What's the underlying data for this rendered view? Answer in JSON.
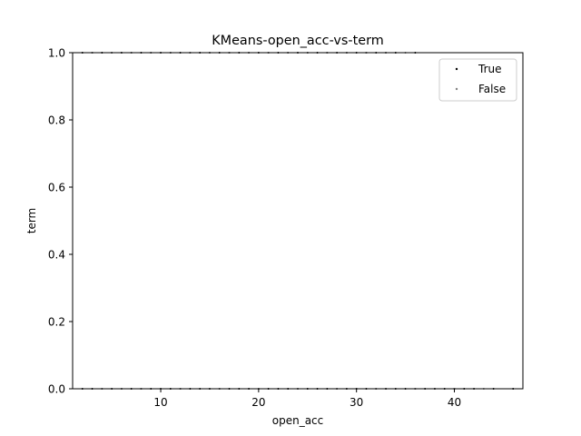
{
  "chart_data": {
    "type": "scatter",
    "title": "KMeans-open_acc-vs-term",
    "xlabel": "open_acc",
    "ylabel": "term",
    "xlim": [
      1,
      47
    ],
    "ylim": [
      0,
      1
    ],
    "x_ticks": [
      10,
      20,
      30,
      40
    ],
    "y_ticks": [
      0.0,
      0.2,
      0.4,
      0.6,
      0.8,
      1.0
    ],
    "y_tick_labels": [
      "0.0",
      "0.2",
      "0.4",
      "0.6",
      "0.8",
      "1.0"
    ],
    "grid": false,
    "legend_position": "top-right",
    "series": [
      {
        "name": "True",
        "color": "#000000",
        "points": [
          [
            2,
            1
          ],
          [
            3,
            1
          ],
          [
            4,
            1
          ],
          [
            5,
            1
          ],
          [
            6,
            1
          ],
          [
            7,
            1
          ],
          [
            8,
            1
          ],
          [
            9,
            1
          ],
          [
            10,
            1
          ],
          [
            11,
            1
          ],
          [
            12,
            1
          ],
          [
            13,
            1
          ],
          [
            14,
            1
          ],
          [
            15,
            1
          ],
          [
            16,
            1
          ],
          [
            17,
            1
          ],
          [
            18,
            1
          ],
          [
            19,
            1
          ],
          [
            20,
            1
          ],
          [
            21,
            1
          ],
          [
            22,
            1
          ],
          [
            23,
            1
          ],
          [
            24,
            1
          ],
          [
            25,
            1
          ],
          [
            26,
            1
          ],
          [
            27,
            1
          ],
          [
            28,
            1
          ],
          [
            29,
            1
          ],
          [
            30,
            1
          ],
          [
            31,
            1
          ],
          [
            32,
            1
          ],
          [
            33,
            1
          ],
          [
            34,
            1
          ],
          [
            36,
            1
          ],
          [
            2,
            0
          ],
          [
            3,
            0
          ],
          [
            4,
            0
          ],
          [
            5,
            0
          ],
          [
            6,
            0
          ],
          [
            7,
            0
          ],
          [
            8,
            0
          ],
          [
            9,
            0
          ],
          [
            10,
            0
          ],
          [
            11,
            0
          ],
          [
            12,
            0
          ],
          [
            13,
            0
          ],
          [
            14,
            0
          ],
          [
            15,
            0
          ],
          [
            16,
            0
          ],
          [
            17,
            0
          ],
          [
            18,
            0
          ],
          [
            19,
            0
          ],
          [
            20,
            0
          ],
          [
            21,
            0
          ],
          [
            22,
            0
          ],
          [
            23,
            0
          ],
          [
            24,
            0
          ],
          [
            25,
            0
          ],
          [
            26,
            0
          ],
          [
            27,
            0
          ],
          [
            28,
            0
          ],
          [
            29,
            0
          ],
          [
            30,
            0
          ],
          [
            31,
            0
          ],
          [
            32,
            0
          ],
          [
            33,
            0
          ],
          [
            34,
            0
          ],
          [
            35,
            0
          ],
          [
            36,
            0
          ],
          [
            37,
            0
          ],
          [
            38,
            0
          ],
          [
            39,
            0
          ],
          [
            40,
            0
          ],
          [
            41,
            0
          ],
          [
            42,
            0
          ],
          [
            44,
            0
          ],
          [
            46,
            0
          ]
        ]
      },
      {
        "name": "False",
        "color": "#808080",
        "points": [
          [
            3,
            1
          ],
          [
            5,
            1
          ],
          [
            7,
            1
          ],
          [
            9,
            1
          ],
          [
            11,
            1
          ],
          [
            13,
            1
          ],
          [
            15,
            1
          ],
          [
            17,
            1
          ],
          [
            19,
            1
          ],
          [
            21,
            1
          ],
          [
            23,
            1
          ],
          [
            25,
            1
          ],
          [
            27,
            1
          ],
          [
            29,
            1
          ],
          [
            31,
            1
          ],
          [
            33,
            1
          ],
          [
            35,
            1
          ],
          [
            4,
            0
          ],
          [
            6,
            0
          ],
          [
            8,
            0
          ],
          [
            12,
            0
          ],
          [
            16,
            0
          ],
          [
            20,
            0
          ],
          [
            24,
            0
          ],
          [
            28,
            0
          ],
          [
            32,
            0
          ],
          [
            36,
            0
          ],
          [
            40,
            0
          ],
          [
            43,
            0
          ]
        ]
      }
    ]
  }
}
